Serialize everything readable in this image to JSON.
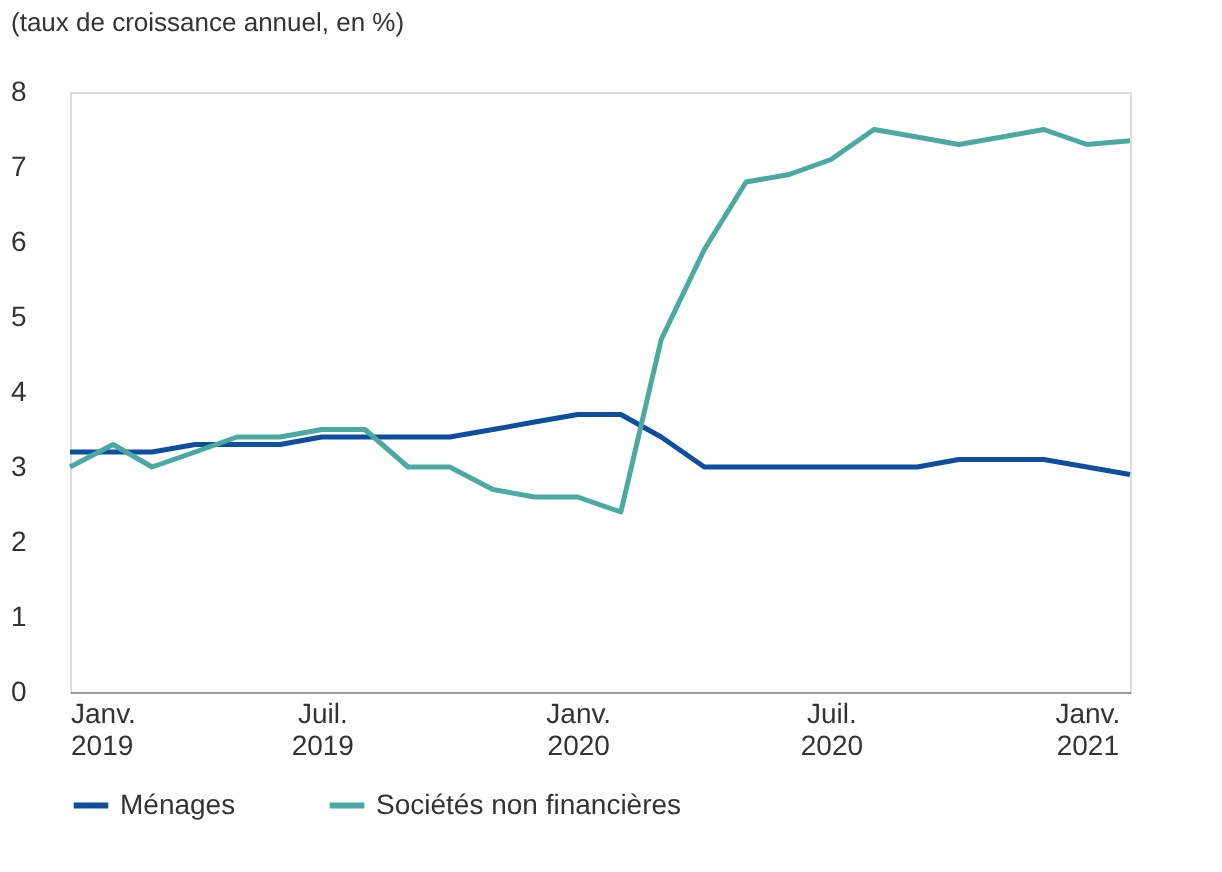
{
  "chart_data": {
    "type": "line",
    "ylabel": "(taux de croissance annuel, en %)",
    "x": [
      "2019-01",
      "2019-02",
      "2019-03",
      "2019-04",
      "2019-05",
      "2019-06",
      "2019-07",
      "2019-08",
      "2019-09",
      "2019-10",
      "2019-11",
      "2019-12",
      "2020-01",
      "2020-02",
      "2020-03",
      "2020-04",
      "2020-05",
      "2020-06",
      "2020-07",
      "2020-08",
      "2020-09",
      "2020-10",
      "2020-11",
      "2020-12",
      "2021-01",
      "2021-02"
    ],
    "series": [
      {
        "name": "Ménages",
        "color": "#0d4f9e",
        "values": [
          3.2,
          3.2,
          3.2,
          3.3,
          3.3,
          3.3,
          3.4,
          3.4,
          3.4,
          3.4,
          3.5,
          3.6,
          3.7,
          3.7,
          3.4,
          3.0,
          3.0,
          3.0,
          3.0,
          3.0,
          3.0,
          3.1,
          3.1,
          3.1,
          3.0,
          2.9
        ]
      },
      {
        "name": "Sociétés non financières",
        "color": "#4aa9a0",
        "values": [
          3.0,
          3.3,
          3.0,
          3.2,
          3.4,
          3.4,
          3.5,
          3.5,
          3.0,
          3.0,
          2.7,
          2.6,
          2.6,
          2.4,
          4.7,
          5.9,
          6.8,
          6.9,
          7.1,
          7.5,
          7.4,
          7.3,
          7.4,
          7.5,
          7.3,
          7.35
        ]
      }
    ],
    "xlim": [
      "2019-01",
      "2021-02"
    ],
    "xticks": [
      {
        "value": "2019-01",
        "label": "Janv. 2019"
      },
      {
        "value": "2019-07",
        "label": "Juil. 2019"
      },
      {
        "value": "2020-01",
        "label": "Janv. 2020"
      },
      {
        "value": "2020-07",
        "label": "Juil. 2020"
      },
      {
        "value": "2021-01",
        "label": "Janv. 2021"
      }
    ],
    "ylim": [
      0,
      8
    ],
    "yticks": [
      0,
      1,
      2,
      3,
      4,
      5,
      6,
      7,
      8
    ],
    "grid": false,
    "legend": "bottom left",
    "line_style": "solid",
    "marker": "none"
  }
}
